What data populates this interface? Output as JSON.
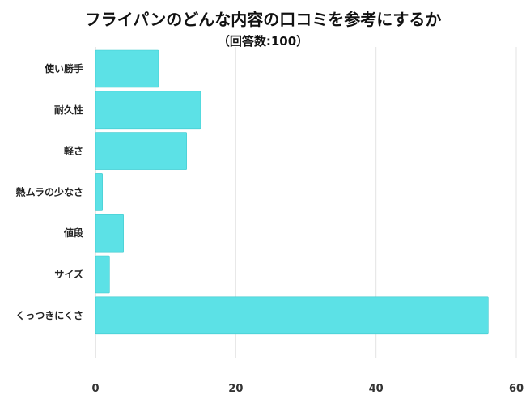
{
  "title": "フライパンのどんな内容の口コミを参考にするか",
  "subtitle": "（回答数:100）",
  "chart_data": {
    "type": "bar",
    "orientation": "horizontal",
    "categories": [
      "使い勝手",
      "耐久性",
      "軽さ",
      "熱ムラの少なさ",
      "値段",
      "サイズ",
      "くっつきにくさ"
    ],
    "values": [
      9,
      15,
      13,
      1,
      4,
      2,
      56
    ],
    "xlim": [
      0,
      60
    ],
    "xticks": [
      0,
      20,
      40,
      60
    ],
    "grid": true,
    "bar_color": "#5ce1e6"
  }
}
